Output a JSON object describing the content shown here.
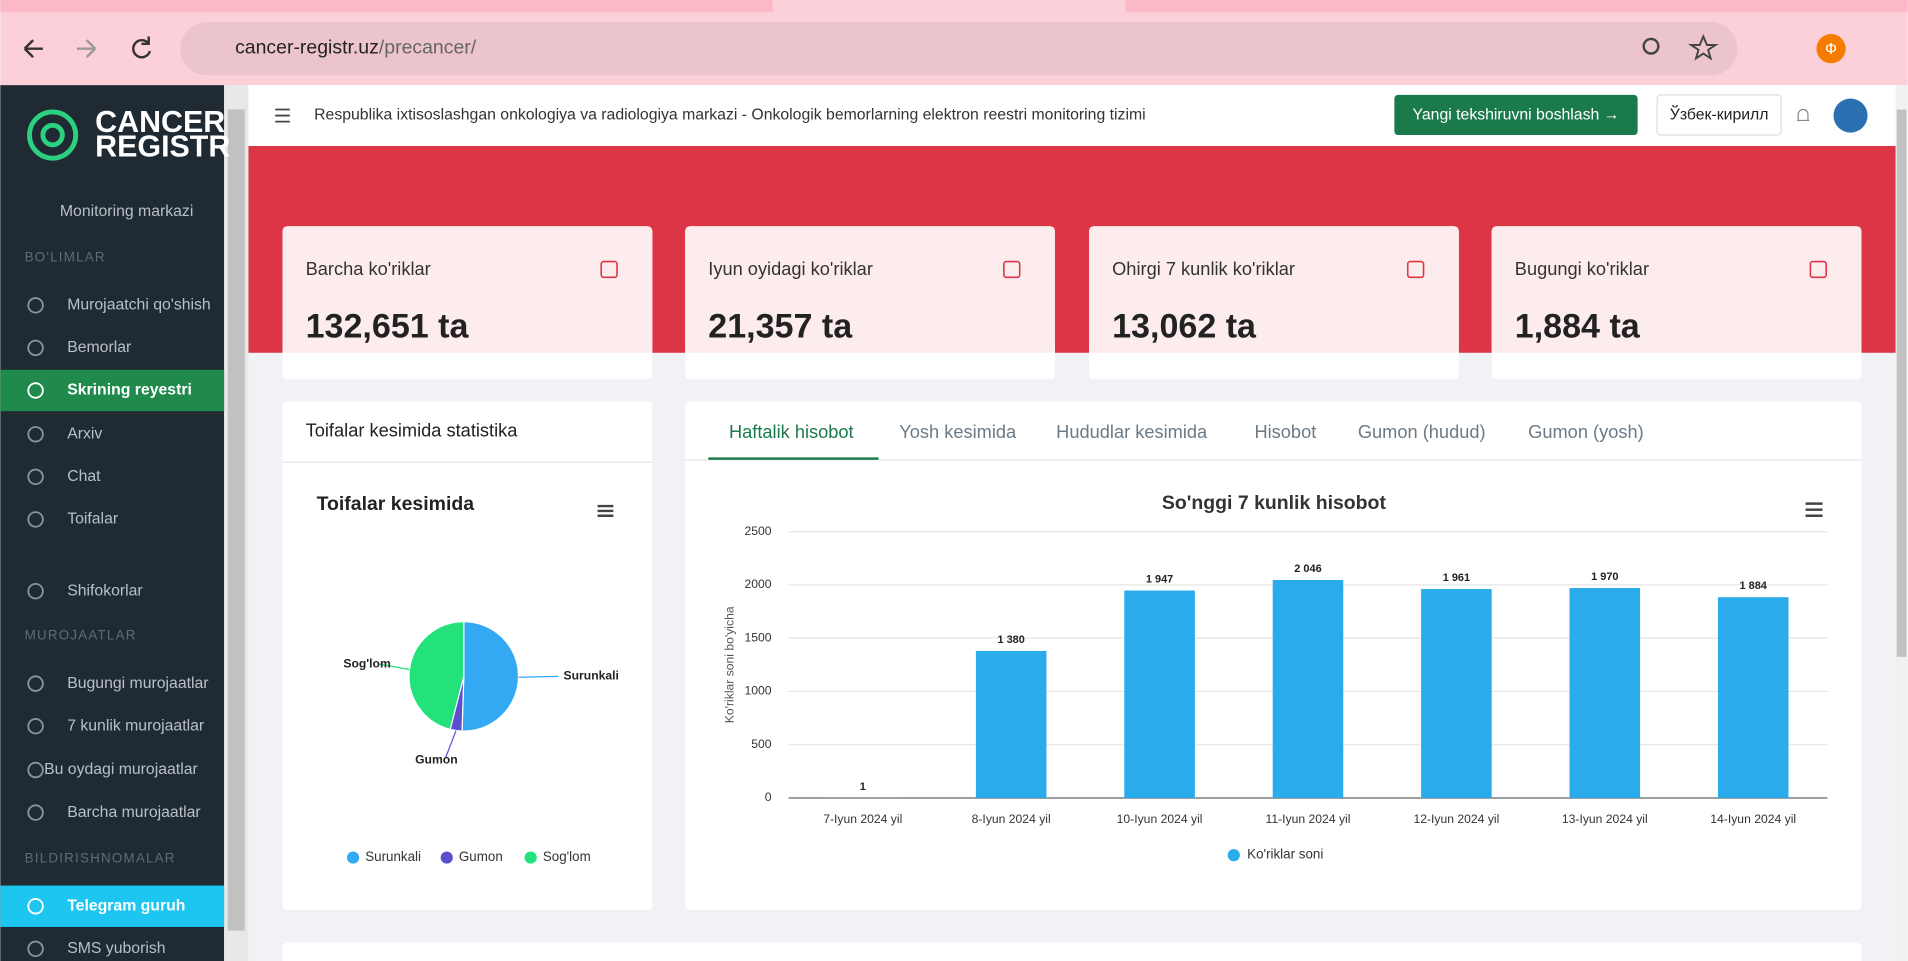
{
  "browser": {
    "url_host": "cancer-registr.uz",
    "url_path": "/precancer/",
    "profile": "Ф"
  },
  "sidebar": {
    "logo": [
      "CANCER",
      "REGISTR"
    ],
    "top": "Monitoring markazi",
    "sections": [
      {
        "title": "BO'LIMLAR",
        "items": [
          "Murojaatchi qo'shish",
          "Bemorlar",
          "Skrining reyestri",
          "Arxiv",
          "Chat",
          "Toifalar",
          "Shifokorlar"
        ]
      },
      {
        "title": "MUROJAATLAR",
        "items": [
          "Bugungi murojaatlar",
          "7 kunlik murojaatlar",
          "Bu oydagi murojaatlar",
          "Barcha murojaatlar"
        ]
      },
      {
        "title": "BILDIRISHNOMALAR",
        "items": [
          "Telegram guruh",
          "SMS yuborish"
        ]
      }
    ]
  },
  "header": {
    "title": "Respublika ixtisoslashgan onkologiya va radiologiya markazi - Onkologik bemorlarning elektron reestri monitoring tizimi",
    "button": "Yangi tekshiruvni boshlash →",
    "language": "Ўзбек-кирилл"
  },
  "cards": [
    {
      "label": "Barcha ko'riklar",
      "value": "132,651 ta"
    },
    {
      "label": "Iyun oyidagi ko'riklar",
      "value": "21,357 ta"
    },
    {
      "label": "Ohirgi 7 kunlik ko'riklar",
      "value": "13,062 ta"
    },
    {
      "label": "Bugungi ko'riklar",
      "value": "1,884 ta"
    }
  ],
  "pie_card": {
    "title": "Toifalar kesimida statistika"
  },
  "tabs": [
    "Haftalik hisobot",
    "Yosh kesimida",
    "Hududlar kesimida",
    "Hisobot",
    "Gumon (hudud)",
    "Gumon (yosh)"
  ],
  "chart_data": [
    {
      "type": "pie",
      "title": "Toifalar kesimida",
      "categories": [
        "Surunkali",
        "Gumon",
        "Sog'lom"
      ],
      "values": [
        50.5,
        3.5,
        46
      ],
      "colors": [
        "#33a9f4",
        "#5b4fd0",
        "#23e27a"
      ]
    },
    {
      "type": "bar",
      "title": "So'nggi 7 kunlik hisobot",
      "y_label": "Ko'riklar soni bo'yicha",
      "categories": [
        "7-Iyun 2024 yil",
        "8-Iyun 2024 yil",
        "10-Iyun 2024 yil",
        "11-Iyun 2024 yil",
        "12-Iyun 2024 yil",
        "13-Iyun 2024 yil",
        "14-Iyun 2024 yil"
      ],
      "series": [
        {
          "name": "Ko'riklar soni",
          "color": "#2aabeb",
          "values": [
            1,
            1380,
            1947,
            2046,
            1961,
            1970,
            1884
          ],
          "value_labels": [
            "1",
            "1 380",
            "1 947",
            "2 046",
            "1 961",
            "1 970",
            "1 884"
          ]
        }
      ],
      "ylim": [
        0,
        2500
      ],
      "yticks": [
        0,
        500,
        1000,
        1500,
        2000,
        2500
      ],
      "grid": true
    }
  ]
}
